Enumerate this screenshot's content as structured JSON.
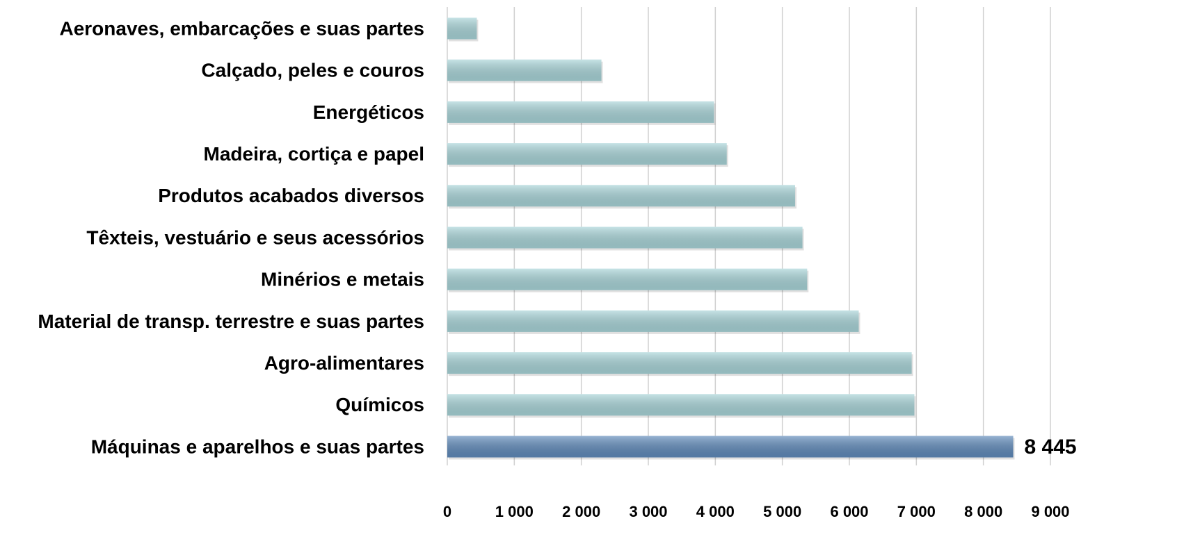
{
  "chart_data": {
    "type": "bar",
    "orientation": "horizontal",
    "categories": [
      "Aeronaves, embarcações e suas partes",
      "Calçado, peles e couros",
      "Energéticos",
      "Madeira, cortiça e papel",
      "Produtos acabados diversos",
      "Têxteis, vestuário e seus acessórios",
      "Minérios e metais",
      "Material de transp. terrestre e suas partes",
      "Agro-alimentares",
      "Químicos",
      "Máquinas e aparelhos e suas partes"
    ],
    "values": [
      440,
      2300,
      3980,
      4170,
      5190,
      5300,
      5370,
      6140,
      6930,
      6970,
      8445
    ],
    "value_labels": [
      null,
      null,
      null,
      null,
      null,
      null,
      null,
      null,
      null,
      null,
      "8 445"
    ],
    "colors": [
      "#a8d4d8",
      "#a8d4d8",
      "#a8d4d8",
      "#a8d4d8",
      "#a8d4d8",
      "#a8d4d8",
      "#a8d4d8",
      "#a8d4d8",
      "#a8d4d8",
      "#a8d4d8",
      "#5f8aba"
    ],
    "xlim": [
      0,
      9000
    ],
    "xticks": [
      0,
      {
        "value": 1000,
        "label": "1 000"
      },
      {
        "value": 2000,
        "label": "2 000"
      },
      {
        "value": 3000,
        "label": "3 000"
      },
      {
        "value": 4000,
        "label": "4 000"
      },
      {
        "value": 5000,
        "label": "5 000"
      },
      {
        "value": 6000,
        "label": "6 000"
      },
      {
        "value": 7000,
        "label": "7 000"
      },
      {
        "value": 8000,
        "label": "8 000"
      },
      {
        "value": 9000,
        "label": "9 000"
      }
    ],
    "grid": true
  }
}
